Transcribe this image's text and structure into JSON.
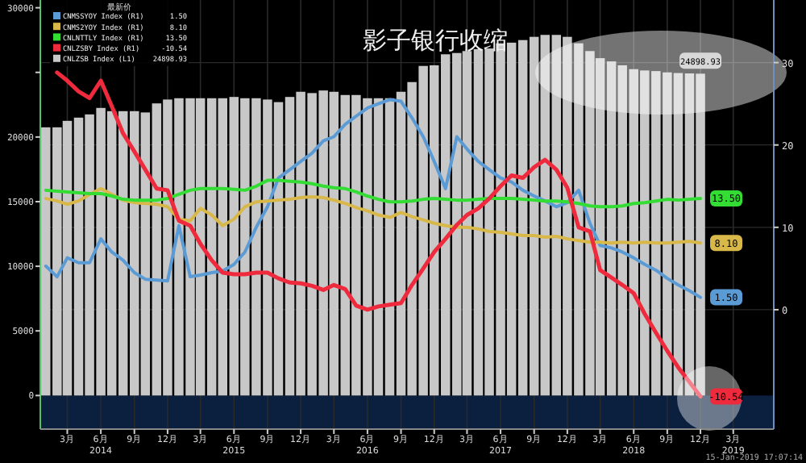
{
  "chart_data": {
    "type": "bar",
    "title": "影子银行收缩",
    "legend_title": "最新价",
    "legend": "top left",
    "grid": true,
    "marker": "none",
    "x": [
      "2014-01",
      "2014-02",
      "2014-03",
      "2014-04",
      "2014-05",
      "2014-06",
      "2014-07",
      "2014-08",
      "2014-09",
      "2014-10",
      "2014-11",
      "2014-12",
      "2015-01",
      "2015-02",
      "2015-03",
      "2015-04",
      "2015-05",
      "2015-06",
      "2015-07",
      "2015-08",
      "2015-09",
      "2015-10",
      "2015-11",
      "2015-12",
      "2016-01",
      "2016-02",
      "2016-03",
      "2016-04",
      "2016-05",
      "2016-06",
      "2016-07",
      "2016-08",
      "2016-09",
      "2016-10",
      "2016-11",
      "2016-12",
      "2017-01",
      "2017-02",
      "2017-03",
      "2017-04",
      "2017-05",
      "2017-06",
      "2017-07",
      "2017-08",
      "2017-09",
      "2017-10",
      "2017-11",
      "2017-12",
      "2018-01",
      "2018-02",
      "2018-03",
      "2018-04",
      "2018-05",
      "2018-06",
      "2018-07",
      "2018-08",
      "2018-09",
      "2018-10",
      "2018-11",
      "2018-12"
    ],
    "xlim": [
      "2013-12-17",
      "2019-06-20"
    ],
    "xticks": [
      {
        "value": "2014-03-01",
        "label": "3月"
      },
      {
        "value": "2014-06-01",
        "label": "6月\n2014"
      },
      {
        "value": "2014-09-01",
        "label": "9月"
      },
      {
        "value": "2014-12-01",
        "label": "12月"
      },
      {
        "value": "2015-03-01",
        "label": "3月"
      },
      {
        "value": "2015-06-01",
        "label": "6月\n2015"
      },
      {
        "value": "2015-09-01",
        "label": "9月"
      },
      {
        "value": "2015-12-01",
        "label": "12月"
      },
      {
        "value": "2016-03-01",
        "label": "3月"
      },
      {
        "value": "2016-06-01",
        "label": "6月\n2016"
      },
      {
        "value": "2016-09-01",
        "label": "9月"
      },
      {
        "value": "2016-12-01",
        "label": "12月"
      },
      {
        "value": "2017-03-01",
        "label": "3月"
      },
      {
        "value": "2017-06-01",
        "label": "6月\n2017"
      },
      {
        "value": "2017-09-01",
        "label": "9月"
      },
      {
        "value": "2017-12-01",
        "label": "12月"
      },
      {
        "value": "2018-03-01",
        "label": "3月"
      },
      {
        "value": "2018-06-01",
        "label": "6月\n2018"
      },
      {
        "value": "2018-09-01",
        "label": "9月"
      },
      {
        "value": "2018-12-01",
        "label": "12月"
      },
      {
        "value": "2019-03-01",
        "label": "3月\n2019"
      }
    ],
    "ylim": [
      -2600,
      30600
    ],
    "yticks": [
      0,
      5000,
      10000,
      15000,
      20000,
      {
        "value": 25000,
        "label": null
      },
      30000
    ],
    "y2lim": [
      -14.5,
      37.6
    ],
    "y2ticks": [
      0,
      10,
      20,
      30
    ],
    "bands": [
      {
        "axis": "y",
        "from": -2600,
        "to": 0,
        "color": "#0b1f3f"
      }
    ],
    "series": [
      {
        "name": "CNMSSYOY Index (R1)",
        "type": "line",
        "axis": "y2",
        "color": "#5b9bd5",
        "values": [
          5.3,
          4,
          6.3,
          5.7,
          5.7,
          8.6,
          7,
          6,
          4.5,
          3.7,
          3.6,
          3.5,
          10.2,
          4,
          4.2,
          4.5,
          4.7,
          5.5,
          7,
          10,
          12.5,
          16,
          17,
          18,
          19,
          20.5,
          21,
          22.5,
          23.5,
          24.5,
          25,
          25.5,
          25.3,
          23.3,
          21,
          18,
          14.7,
          21,
          19.5,
          18,
          17,
          16,
          15.5,
          14.5,
          13.8,
          13.2,
          12.5,
          13,
          14.5,
          10.5,
          7.8,
          7.5,
          7,
          6.3,
          5.5,
          4.8,
          3.8,
          3,
          2.3,
          1.5
        ],
        "value_labels": [
          null,
          null,
          null,
          null,
          null,
          null,
          null,
          null,
          null,
          null,
          null,
          null,
          null,
          null,
          null,
          null,
          null,
          null,
          null,
          null,
          null,
          null,
          null,
          null,
          null,
          null,
          null,
          null,
          null,
          null,
          null,
          null,
          null,
          null,
          null,
          null,
          null,
          null,
          null,
          null,
          null,
          null,
          null,
          null,
          null,
          null,
          null,
          null,
          null,
          null,
          null,
          null,
          null,
          null,
          null,
          null,
          null,
          null,
          null,
          "1.50"
        ]
      },
      {
        "name": "CNMS2YOY Index (R1)",
        "type": "line",
        "axis": "y2",
        "color": "#d9b84a",
        "values": [
          13.5,
          13.2,
          12.8,
          13.2,
          14,
          14.7,
          14,
          13.3,
          13,
          12.9,
          12.8,
          12.5,
          11,
          10.8,
          12.3,
          11.5,
          10.2,
          11,
          12.5,
          13.1,
          13.2,
          13.3,
          13.4,
          13.6,
          13.7,
          13.6,
          13.3,
          12.9,
          12.4,
          12,
          11.5,
          11.2,
          11.8,
          11.3,
          10.9,
          10.5,
          10.2,
          10,
          10,
          9.8,
          9.5,
          9.4,
          9.2,
          9,
          9,
          8.8,
          8.9,
          8.6,
          8.4,
          8.2,
          8.2,
          8.1,
          8.2,
          8.1,
          8.2,
          8.1,
          8.1,
          8.2,
          8.3,
          8.1
        ],
        "value_labels": [
          null,
          null,
          null,
          null,
          null,
          null,
          null,
          null,
          null,
          null,
          null,
          null,
          null,
          null,
          null,
          null,
          null,
          null,
          null,
          null,
          null,
          null,
          null,
          null,
          null,
          null,
          null,
          null,
          null,
          null,
          null,
          null,
          null,
          null,
          null,
          null,
          null,
          null,
          null,
          null,
          null,
          null,
          null,
          null,
          null,
          null,
          null,
          null,
          null,
          null,
          null,
          null,
          null,
          null,
          null,
          null,
          null,
          null,
          null,
          "8.10"
        ]
      },
      {
        "name": "CNLNTTLY Index (R1)",
        "type": "line",
        "axis": "y2",
        "color": "#33dd33",
        "values": [
          14.5,
          14.4,
          14.3,
          14.2,
          14.1,
          14.1,
          13.8,
          13.4,
          13.3,
          13.3,
          13.3,
          13.5,
          14,
          14.5,
          14.7,
          14.7,
          14.7,
          14.6,
          14.5,
          15,
          15.7,
          15.7,
          15.6,
          15.5,
          15.3,
          15,
          14.8,
          14.7,
          14.3,
          13.8,
          13.4,
          13.1,
          13.1,
          13.2,
          13.4,
          13.5,
          13.4,
          13.3,
          13.3,
          13.4,
          13.5,
          13.5,
          13.5,
          13.4,
          13.3,
          13.2,
          13.2,
          13.1,
          12.9,
          12.6,
          12.5,
          12.5,
          12.6,
          12.9,
          13,
          13.2,
          13.4,
          13.3,
          13.4,
          13.5
        ],
        "value_labels": [
          null,
          null,
          null,
          null,
          null,
          null,
          null,
          null,
          null,
          null,
          null,
          null,
          null,
          null,
          null,
          null,
          null,
          null,
          null,
          null,
          null,
          null,
          null,
          null,
          null,
          null,
          null,
          null,
          null,
          null,
          null,
          null,
          null,
          null,
          null,
          null,
          null,
          null,
          null,
          null,
          null,
          null,
          null,
          null,
          null,
          null,
          null,
          null,
          null,
          null,
          null,
          null,
          null,
          null,
          null,
          null,
          null,
          null,
          null,
          "13.50"
        ]
      },
      {
        "name": "CNLZSBY Index (R1)",
        "type": "line",
        "axis": "y2",
        "color": "#ee2a3c",
        "values": [
          null,
          28.8,
          27.8,
          26.5,
          25.7,
          27.8,
          24.7,
          21.4,
          19.2,
          17,
          14.7,
          14.5,
          10.8,
          10.2,
          8,
          6,
          4.5,
          4.3,
          4.3,
          4.5,
          4.5,
          3.8,
          3.3,
          3.2,
          2.9,
          2.4,
          3,
          2.5,
          0.5,
          0,
          0.4,
          0.6,
          0.8,
          3,
          5,
          7,
          8.6,
          10.3,
          11.5,
          12.3,
          13.5,
          15,
          16.3,
          16,
          17.3,
          18.2,
          17,
          14.8,
          10,
          9.5,
          4.8,
          3.9,
          3,
          2,
          -0.5,
          -2.8,
          -5,
          -7,
          -8.8,
          -10.54
        ],
        "value_labels": [
          null,
          null,
          null,
          null,
          null,
          null,
          null,
          null,
          null,
          null,
          null,
          null,
          null,
          null,
          null,
          null,
          null,
          null,
          null,
          null,
          null,
          null,
          null,
          null,
          null,
          null,
          null,
          null,
          null,
          null,
          null,
          null,
          null,
          null,
          null,
          null,
          null,
          null,
          null,
          null,
          null,
          null,
          null,
          null,
          null,
          null,
          null,
          null,
          null,
          null,
          null,
          null,
          null,
          null,
          null,
          null,
          null,
          null,
          null,
          "-10.54"
        ]
      },
      {
        "name": "CNLZSB Index (L1)",
        "color": "#c8c8c8",
        "values": [
          20750,
          20750,
          21250,
          21500,
          21750,
          22250,
          22000,
          22000,
          22000,
          21900,
          22600,
          22900,
          23000,
          23000,
          23000,
          23000,
          23000,
          23100,
          23000,
          23000,
          22900,
          22700,
          23100,
          23500,
          23400,
          23600,
          23500,
          23250,
          23250,
          23000,
          23000,
          23000,
          23500,
          24250,
          25500,
          25550,
          26400,
          26500,
          26650,
          26800,
          26850,
          27250,
          27300,
          27500,
          27750,
          27900,
          27900,
          27750,
          27250,
          26650,
          26100,
          25850,
          25550,
          25250,
          25150,
          25100,
          25000,
          24950,
          24920,
          24898.93
        ],
        "value_labels": [
          null,
          null,
          null,
          null,
          null,
          null,
          null,
          null,
          null,
          null,
          null,
          null,
          null,
          null,
          null,
          null,
          null,
          null,
          null,
          null,
          null,
          null,
          null,
          null,
          null,
          null,
          null,
          null,
          null,
          null,
          null,
          null,
          null,
          null,
          null,
          null,
          null,
          null,
          null,
          null,
          null,
          null,
          null,
          null,
          null,
          null,
          null,
          null,
          null,
          null,
          null,
          null,
          null,
          null,
          null,
          null,
          null,
          null,
          null,
          "24898.93"
        ]
      }
    ],
    "annotations": [
      "15-Jan-2019 17:07:14"
    ]
  }
}
